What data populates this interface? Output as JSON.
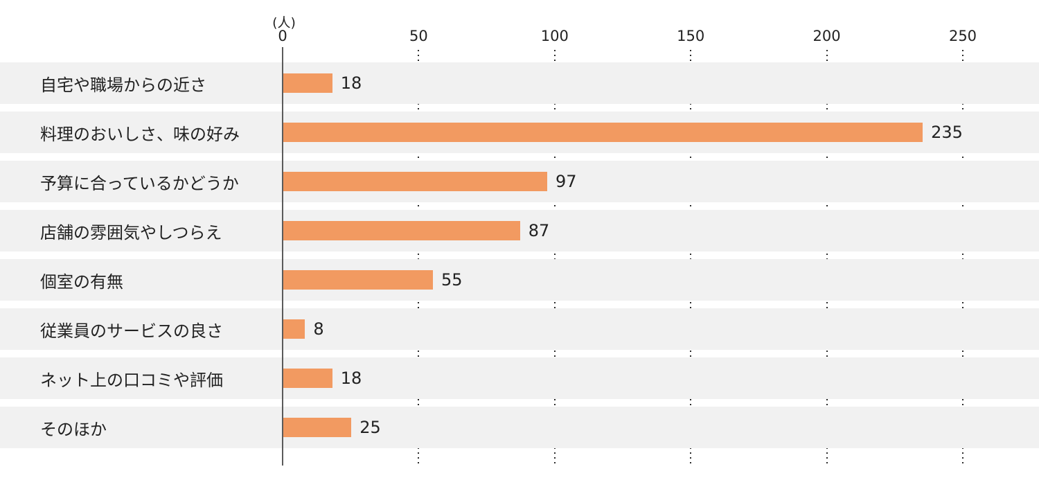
{
  "chart_data": {
    "type": "bar",
    "orientation": "horizontal",
    "title": "",
    "xlabel": "",
    "ylabel": "",
    "unit_label": "(人)",
    "categories": [
      "自宅や職場からの近さ",
      "料理のおいしさ、味の好み",
      "予算に合っているかどうか",
      "店舗の雰囲気やしつらえ",
      "個室の有無",
      "従業員のサービスの良さ",
      "ネット上の口コミや評価",
      "そのほか"
    ],
    "values": [
      18,
      235,
      97,
      87,
      55,
      8,
      18,
      25
    ],
    "x_ticks": [
      0,
      50,
      100,
      150,
      200,
      250
    ],
    "xlim": [
      0,
      278
    ],
    "grid": "dotted-vertical-between-rows",
    "legend": "none",
    "colors": {
      "bar": "#F29A61",
      "row_band": "#F1F1F1",
      "axis_line": "#5A5A5A",
      "grid_dots": "#2B2B2B",
      "text": "#222222",
      "background": "#FFFFFF"
    }
  }
}
